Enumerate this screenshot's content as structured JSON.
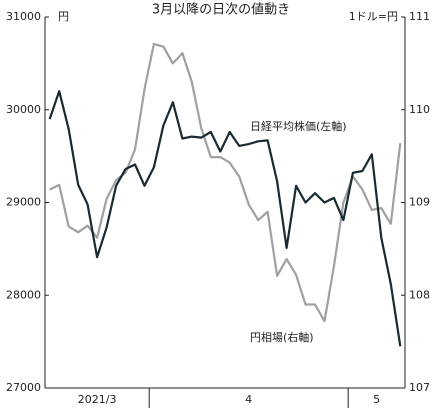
{
  "chart_data": {
    "type": "line",
    "title": "3月以降の日次の値動き",
    "y_unit": "円",
    "y2_unit": "1ドル=円",
    "categories": [
      null,
      null,
      null,
      null,
      null,
      null,
      null,
      null,
      null,
      null,
      null,
      null,
      null,
      null,
      null,
      null,
      null,
      null,
      null,
      null,
      null,
      null,
      null,
      null,
      null,
      null,
      null,
      null,
      null,
      null,
      null,
      null,
      null,
      null,
      null,
      null,
      null,
      null
    ],
    "groups": [
      {
        "label": "2021/3",
        "size": 11
      },
      {
        "label": "4",
        "size": 21
      },
      {
        "label": "5",
        "size": 6
      }
    ],
    "series": [
      {
        "name": "日経平均株価(左軸)",
        "color": "#1a2a30",
        "axis": "y",
        "values": [
          29900,
          30200,
          29790,
          29190,
          28980,
          28410,
          28730,
          29180,
          29360,
          29410,
          29180,
          29380,
          29830,
          30080,
          29690,
          29710,
          29700,
          29760,
          29550,
          29760,
          29610,
          29630,
          29660,
          29670,
          29230,
          28510,
          29180,
          29000,
          29100,
          29000,
          29050,
          28810,
          29320,
          29340,
          29520,
          28620,
          28120,
          27450
        ]
      },
      {
        "name": "円相場(右軸)",
        "color": "#a0a0a0",
        "axis": "y2",
        "values": [
          109.14,
          109.19,
          108.74,
          108.68,
          108.75,
          108.62,
          109.04,
          109.24,
          109.32,
          109.57,
          110.22,
          110.71,
          110.68,
          110.5,
          110.61,
          110.3,
          109.8,
          109.49,
          109.49,
          109.43,
          109.28,
          108.98,
          108.81,
          108.9,
          108.21,
          108.39,
          108.22,
          107.9,
          107.9,
          107.72,
          108.31,
          109.0,
          109.28,
          109.14,
          108.92,
          108.94,
          108.77,
          109.64
        ]
      }
    ],
    "ylim": [
      27000,
      31000
    ],
    "yticks": [
      27000,
      28000,
      29000,
      30000,
      31000
    ],
    "y2lim": [
      107,
      111
    ],
    "y2ticks": [
      107,
      108,
      109,
      110,
      111
    ],
    "grid": false
  }
}
